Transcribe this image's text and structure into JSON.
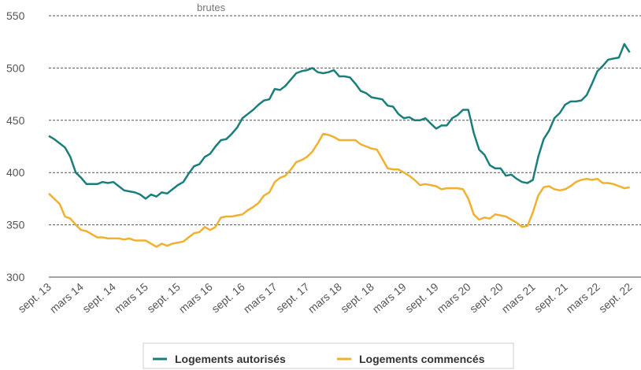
{
  "chart_data": {
    "type": "line",
    "subtitle": "brutes",
    "categories": [
      "sept. 13",
      null,
      null,
      null,
      null,
      null,
      "mars 14",
      null,
      null,
      null,
      null,
      null,
      "sept. 14",
      null,
      null,
      null,
      null,
      null,
      "mars 15",
      null,
      null,
      null,
      null,
      null,
      "sept. 15",
      null,
      null,
      null,
      null,
      null,
      "mars 16",
      null,
      null,
      null,
      null,
      null,
      "sept. 16",
      null,
      null,
      null,
      null,
      null,
      "mars 17",
      null,
      null,
      null,
      null,
      null,
      "sept. 17",
      null,
      null,
      null,
      null,
      null,
      "mars 18",
      null,
      null,
      null,
      null,
      null,
      "sept. 18",
      null,
      null,
      null,
      null,
      null,
      "mars 19",
      null,
      null,
      null,
      null,
      null,
      "sept. 19",
      null,
      null,
      null,
      null,
      null,
      "mars 20",
      null,
      null,
      null,
      null,
      null,
      "sept. 20",
      null,
      null,
      null,
      null,
      null,
      "mars 21",
      null,
      null,
      null,
      null,
      null,
      "sept. 21",
      null,
      null,
      null,
      null,
      null,
      "mars 22",
      null,
      null,
      null,
      null,
      null,
      "sept. 22"
    ],
    "series": [
      {
        "name": "Logements autorisés",
        "color": "#1a7f7a",
        "values": [
          435,
          432,
          428,
          424,
          415,
          400,
          395,
          389,
          389,
          389,
          391,
          390,
          391,
          387,
          383,
          382,
          381,
          379,
          375,
          379,
          377,
          381,
          380,
          384,
          388,
          391,
          399,
          406,
          408,
          415,
          418,
          425,
          431,
          432,
          437,
          443,
          452,
          456,
          460,
          465,
          469,
          470,
          480,
          479,
          483,
          489,
          495,
          497,
          498,
          500,
          496,
          495,
          496,
          498,
          492,
          492,
          491,
          485,
          478,
          476,
          472,
          471,
          470,
          464,
          463,
          456,
          452,
          453,
          450,
          450,
          452,
          447,
          442,
          445,
          445,
          452,
          455,
          460,
          460,
          438,
          422,
          417,
          407,
          404,
          404,
          397,
          398,
          394,
          391,
          390,
          393,
          415,
          432,
          440,
          452,
          457,
          465,
          468,
          468,
          469,
          474,
          485,
          497,
          502,
          508,
          509,
          510,
          523,
          515
        ]
      },
      {
        "name": "Logements commencés",
        "color": "#f0b030",
        "values": [
          380,
          375,
          370,
          358,
          356,
          350,
          345,
          344,
          341,
          338,
          338,
          337,
          337,
          337,
          336,
          337,
          335,
          335,
          335,
          332,
          329,
          332,
          330,
          332,
          333,
          334,
          338,
          342,
          343,
          348,
          345,
          348,
          357,
          358,
          358,
          359,
          360,
          364,
          367,
          371,
          378,
          381,
          391,
          395,
          397,
          403,
          410,
          412,
          415,
          420,
          428,
          437,
          436,
          434,
          431,
          431,
          431,
          431,
          427,
          425,
          423,
          422,
          413,
          404,
          403,
          403,
          400,
          397,
          393,
          388,
          389,
          388,
          387,
          384,
          385,
          385,
          385,
          384,
          375,
          360,
          355,
          357,
          356,
          360,
          359,
          358,
          355,
          352,
          348,
          349,
          362,
          378,
          386,
          387,
          384,
          383,
          384,
          387,
          391,
          393,
          394,
          393,
          394,
          390,
          390,
          389,
          387,
          385,
          386
        ]
      }
    ],
    "ylim": [
      300,
      550
    ],
    "yticks": [
      300,
      350,
      400,
      450,
      500,
      550
    ],
    "grid": true,
    "legend": "bottom"
  }
}
